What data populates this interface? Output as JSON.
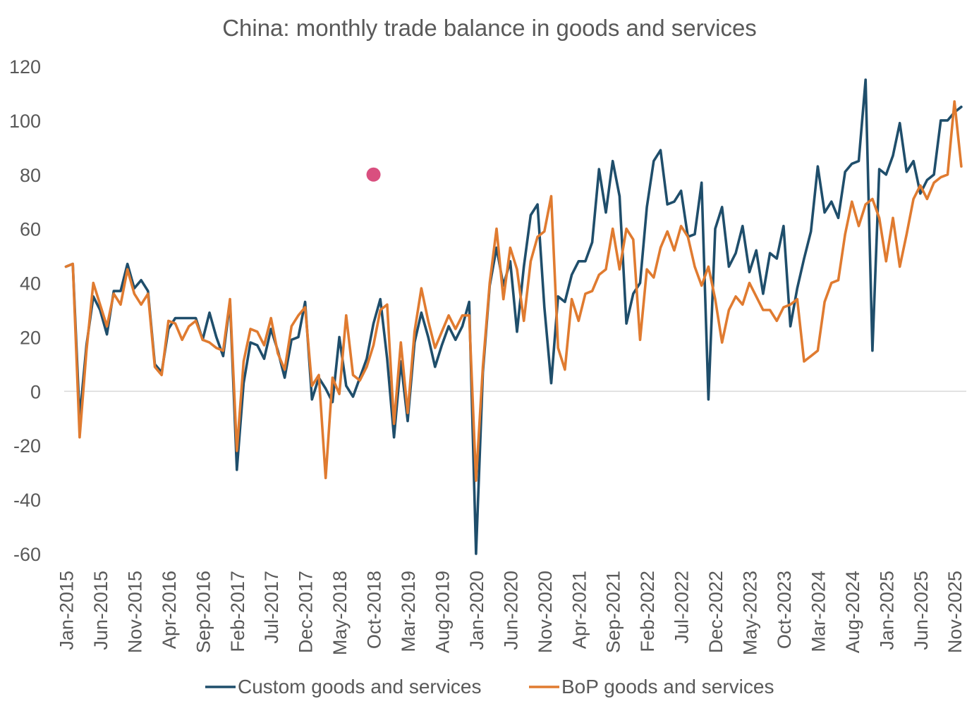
{
  "chart_data": {
    "type": "line",
    "title": "China: monthly trade balance in goods and services",
    "xlabel": "",
    "ylabel": "",
    "ylim": [
      -60,
      120
    ],
    "yticks": [
      "120",
      "100",
      "80",
      "60",
      "40",
      "20",
      "0",
      "-20",
      "-40",
      "-60"
    ],
    "ytick_values": [
      120,
      100,
      80,
      60,
      40,
      20,
      0,
      -20,
      -40,
      -60
    ],
    "start_month": "Jan-2015",
    "x_tick_labels": [
      "Jan-2015",
      "Jun-2015",
      "Nov-2015",
      "Apr-2016",
      "Sep-2016",
      "Feb-2017",
      "Jul-2017",
      "Dec-2017",
      "May-2018",
      "Oct-2018",
      "Mar-2019",
      "Aug-2019",
      "Jan-2020",
      "Jun-2020",
      "Nov-2020",
      "Apr-2021",
      "Sep-2021",
      "Feb-2022",
      "Jul-2022",
      "Dec-2022",
      "May-2023",
      "Oct-2023",
      "Mar-2024",
      "Aug-2024",
      "Jan-2025",
      "Jun-2025",
      "Nov-2025"
    ],
    "x_tick_step_months": 5,
    "grid": false,
    "zero_line": true,
    "legend_position": "bottom",
    "annotation_marker": {
      "index": 45,
      "value": 80,
      "color": "#d94f7f"
    },
    "series": [
      {
        "name": "Custom goods and services",
        "color": "#1f4e6b",
        "values": [
          46,
          47,
          -10,
          17,
          35,
          30,
          21,
          37,
          37,
          47,
          38,
          41,
          37,
          10,
          7,
          23,
          27,
          27,
          27,
          27,
          19,
          29,
          20,
          13,
          33,
          -29,
          3,
          18,
          17,
          12,
          23,
          15,
          5,
          19,
          20,
          33,
          -3,
          5,
          1,
          -4,
          20,
          2,
          -2,
          5,
          12,
          25,
          34,
          12,
          -17,
          11,
          -11,
          18,
          29,
          20,
          9,
          17,
          24,
          19,
          24,
          33,
          -60,
          7,
          39,
          53,
          39,
          48,
          22,
          46,
          65,
          69,
          31,
          3,
          35,
          33,
          43,
          48,
          48,
          55,
          82,
          66,
          85,
          72,
          25,
          36,
          40,
          68,
          85,
          89,
          69,
          70,
          74,
          57,
          58,
          77,
          -3,
          60,
          68,
          46,
          51,
          61,
          44,
          52,
          36,
          51,
          49,
          61,
          24,
          38,
          49,
          59,
          83,
          66,
          70,
          64,
          81,
          84,
          85,
          115,
          15,
          82,
          80,
          87,
          99,
          81,
          85,
          73,
          78,
          80,
          100,
          100,
          103,
          105
        ]
      },
      {
        "name": "BoP goods and services",
        "color": "#e07b30",
        "values": [
          46,
          47,
          -17,
          15,
          40,
          32,
          24,
          36,
          32,
          45,
          36,
          32,
          36,
          9,
          6,
          26,
          25,
          19,
          24,
          26,
          19,
          18,
          16,
          15,
          34,
          -22,
          11,
          23,
          22,
          17,
          27,
          14,
          8,
          24,
          28,
          31,
          2,
          6,
          -32,
          5,
          -1,
          28,
          6,
          4,
          9,
          17,
          30,
          32,
          -12,
          18,
          -8,
          22,
          38,
          26,
          16,
          22,
          28,
          23,
          28,
          28,
          -33,
          9,
          40,
          60,
          34,
          53,
          45,
          26,
          48,
          57,
          59,
          72,
          16,
          8,
          34,
          26,
          36,
          37,
          43,
          45,
          60,
          45,
          60,
          56,
          19,
          45,
          42,
          53,
          59,
          52,
          61,
          57,
          46,
          39,
          46,
          34,
          18,
          30,
          35,
          32,
          40,
          35,
          30,
          30,
          26,
          31,
          32,
          34,
          11,
          13,
          15,
          33,
          40,
          41,
          58,
          70,
          61,
          69,
          71,
          64,
          48,
          64,
          46,
          58,
          71,
          76,
          71,
          77,
          79,
          80,
          107,
          83
        ]
      }
    ]
  }
}
